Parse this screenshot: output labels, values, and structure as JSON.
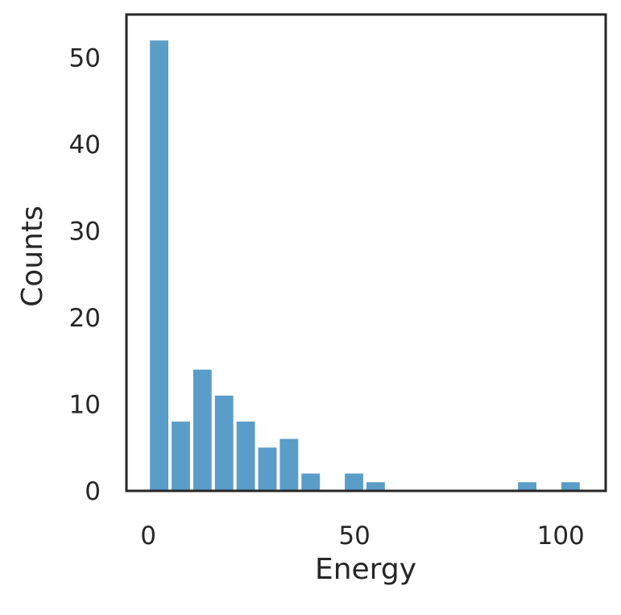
{
  "chart_data": {
    "type": "histogram",
    "x_label": "Energy",
    "y_label": "Counts",
    "bins": [
      0,
      5.25,
      10.5,
      15.75,
      21,
      26.25,
      31.5,
      36.75,
      42,
      47.25,
      52.5,
      57.75,
      63,
      68.25,
      73.5,
      78.75,
      84,
      89.25,
      94.5,
      99.75,
      105
    ],
    "values": [
      52,
      8,
      14,
      11,
      8,
      5,
      6,
      2,
      0,
      2,
      1,
      0,
      0,
      0,
      0,
      0,
      0,
      1,
      0,
      1
    ],
    "color": "#5a9dc8",
    "xlim": [
      -5.3,
      110.9
    ],
    "xticks": [
      0,
      50,
      100
    ],
    "ylim": [
      0,
      55
    ],
    "yticks": [
      0,
      10,
      20,
      30,
      40,
      50
    ]
  }
}
